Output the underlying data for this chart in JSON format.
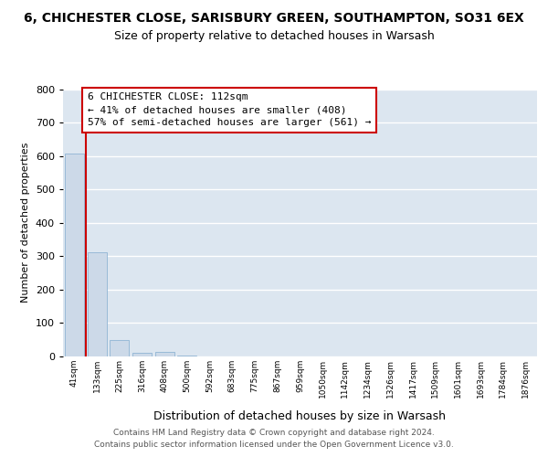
{
  "title": "6, CHICHESTER CLOSE, SARISBURY GREEN, SOUTHAMPTON, SO31 6EX",
  "subtitle": "Size of property relative to detached houses in Warsash",
  "xlabel": "Distribution of detached houses by size in Warsash",
  "ylabel": "Number of detached properties",
  "footer_line1": "Contains HM Land Registry data © Crown copyright and database right 2024.",
  "footer_line2": "Contains public sector information licensed under the Open Government Licence v3.0.",
  "bar_labels": [
    "41sqm",
    "133sqm",
    "225sqm",
    "316sqm",
    "408sqm",
    "500sqm",
    "592sqm",
    "683sqm",
    "775sqm",
    "867sqm",
    "959sqm",
    "1050sqm",
    "1142sqm",
    "1234sqm",
    "1326sqm",
    "1417sqm",
    "1509sqm",
    "1601sqm",
    "1693sqm",
    "1784sqm",
    "1876sqm"
  ],
  "bar_values": [
    608,
    311,
    48,
    12,
    14,
    3,
    0,
    0,
    0,
    0,
    0,
    0,
    0,
    0,
    0,
    0,
    0,
    0,
    0,
    0,
    0
  ],
  "bar_color": "#ccd9e8",
  "annotation_title": "6 CHICHESTER CLOSE: 112sqm",
  "annotation_line1": "← 41% of detached houses are smaller (408)",
  "annotation_line2": "57% of semi-detached houses are larger (561) →",
  "ylim": [
    0,
    800
  ],
  "yticks": [
    0,
    100,
    200,
    300,
    400,
    500,
    600,
    700,
    800
  ],
  "bg_color": "#ffffff",
  "plot_bg_color": "#dce6f0",
  "grid_color": "#ffffff",
  "bar_edge_color": "#8fb4d4",
  "red_line_color": "#cc0000",
  "box_edge_color": "#cc0000",
  "box_face_color": "#ffffff"
}
